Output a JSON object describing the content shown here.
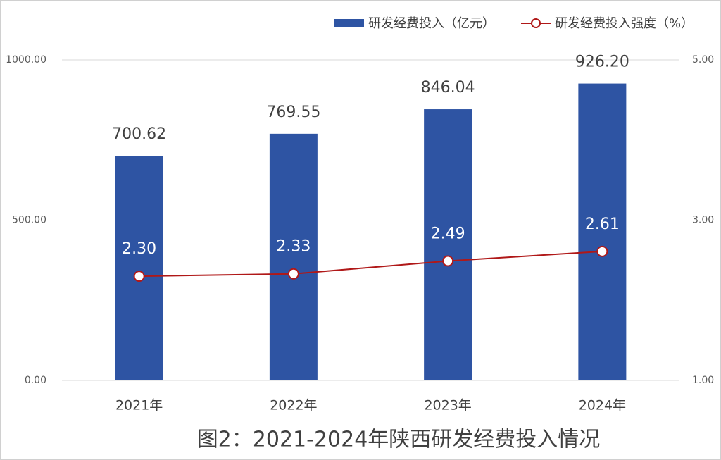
{
  "chart_data": {
    "type": "bar",
    "title": "图2：2021-2024年陕西研发经费投入情况",
    "categories": [
      "2021年",
      "2022年",
      "2023年",
      "2024年"
    ],
    "series": [
      {
        "name": "研发经费投入（亿元）",
        "type": "bar",
        "color": "#2e54a3",
        "values": [
          700.62,
          769.55,
          846.04,
          926.2
        ],
        "value_labels": [
          "700.62",
          "769.55",
          "846.04",
          "926.20"
        ]
      },
      {
        "name": "研发经费投入强度（%）",
        "type": "line",
        "axis": "y2",
        "color": "#b01818",
        "values": [
          2.3,
          2.33,
          2.49,
          2.61
        ],
        "value_labels": [
          "2.30",
          "2.33",
          "2.49",
          "2.61"
        ]
      }
    ],
    "ylim": [
      0,
      1000
    ],
    "yticks": [
      {
        "value": 0,
        "label": "0.00"
      },
      {
        "value": 500,
        "label": "500.00"
      },
      {
        "value": 1000,
        "label": "1000.00"
      }
    ],
    "y2lim": [
      1,
      5
    ],
    "y2ticks": [
      {
        "value": 1,
        "label": "1.00"
      },
      {
        "value": 3,
        "label": "3.00"
      },
      {
        "value": 5,
        "label": "5.00"
      }
    ],
    "grid": true
  }
}
